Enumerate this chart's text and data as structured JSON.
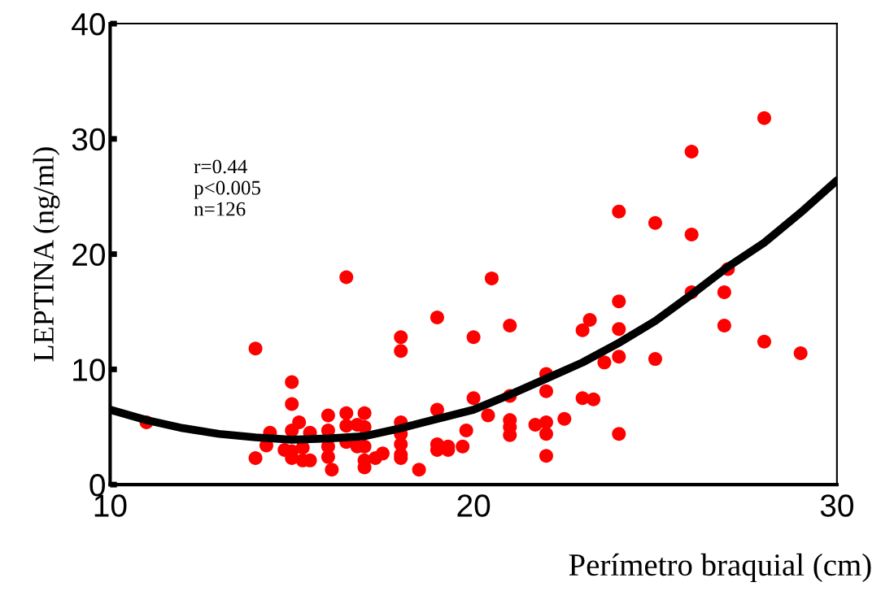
{
  "chart_data": {
    "type": "scatter",
    "xlabel": "Perímetro braquial (cm)",
    "ylabel": "LEPTINA (ng/ml)",
    "xlim": [
      10,
      30
    ],
    "xticks": [
      10,
      20,
      30
    ],
    "ylim": [
      0,
      40
    ],
    "yticks": [
      0,
      10,
      20,
      30,
      40
    ],
    "grid": false,
    "legend": false,
    "annotations": [
      "r=0.44\np<0.005\nn=126"
    ],
    "series": [
      {
        "color": "#ff0000",
        "marker": "circle",
        "x": [
          11.0,
          14.0,
          14.0,
          14.3,
          14.4,
          15.0,
          15.0,
          15.0,
          15.0,
          15.0,
          14.8,
          15.2,
          15.3,
          15.3,
          15.5,
          15.5,
          16.0,
          16.0,
          16.0,
          16.0,
          16.1,
          16.5,
          16.5,
          16.5,
          16.5,
          16.8,
          16.8,
          17.0,
          17.0,
          17.0,
          17.0,
          17.0,
          17.3,
          17.5,
          18.0,
          18.0,
          18.0,
          18.0,
          18.0,
          18.0,
          18.0,
          18.5,
          19.0,
          19.0,
          19.0,
          19.0,
          19.3,
          19.3,
          19.7,
          19.8,
          20.0,
          20.0,
          20.4,
          20.5,
          21.0,
          21.0,
          21.0,
          21.0,
          21.0,
          21.7,
          22.0,
          22.0,
          22.0,
          22.0,
          22.0,
          22.5,
          23.0,
          23.2,
          23.0,
          23.3,
          23.6,
          24.0,
          24.0,
          24.0,
          24.0,
          24.0,
          25.0,
          25.0,
          26.0,
          26.0,
          26.0,
          26.9,
          26.9,
          27.0,
          28.0,
          28.0,
          29.0
        ],
        "values": [
          5.4,
          11.8,
          2.3,
          3.4,
          4.5,
          8.9,
          7.0,
          4.7,
          2.9,
          2.3,
          3.0,
          5.4,
          3.2,
          2.1,
          4.5,
          2.1,
          6.0,
          4.7,
          3.3,
          2.4,
          1.3,
          18.0,
          6.2,
          5.1,
          3.7,
          5.2,
          3.3,
          6.2,
          5.0,
          3.3,
          2.1,
          1.5,
          2.3,
          2.7,
          12.8,
          11.6,
          5.4,
          4.4,
          3.5,
          2.6,
          2.3,
          1.3,
          14.5,
          6.5,
          3.5,
          3.0,
          3.3,
          3.0,
          3.3,
          4.7,
          12.8,
          7.5,
          6.0,
          17.9,
          13.8,
          7.7,
          5.6,
          5.0,
          4.3,
          5.2,
          9.6,
          8.1,
          5.4,
          4.4,
          2.5,
          5.7,
          13.4,
          14.3,
          7.5,
          7.4,
          10.6,
          23.7,
          15.9,
          13.5,
          11.1,
          4.4,
          22.7,
          10.9,
          28.9,
          21.7,
          16.7,
          16.7,
          13.8,
          18.7,
          31.8,
          12.4,
          11.4
        ]
      },
      {
        "type": "line",
        "color": "#000000",
        "marker": "none",
        "line_style": "solid",
        "x": [
          10,
          11,
          12,
          13,
          14,
          15,
          16,
          17,
          18,
          19,
          20,
          21,
          22,
          23,
          24,
          25,
          26,
          27,
          28,
          29,
          30
        ],
        "values": [
          6.5,
          5.6,
          4.9,
          4.4,
          4.1,
          3.9,
          4.0,
          4.2,
          4.9,
          5.7,
          6.5,
          7.8,
          9.2,
          10.6,
          12.3,
          14.2,
          16.5,
          18.9,
          21.0,
          23.6,
          26.4
        ]
      }
    ]
  }
}
